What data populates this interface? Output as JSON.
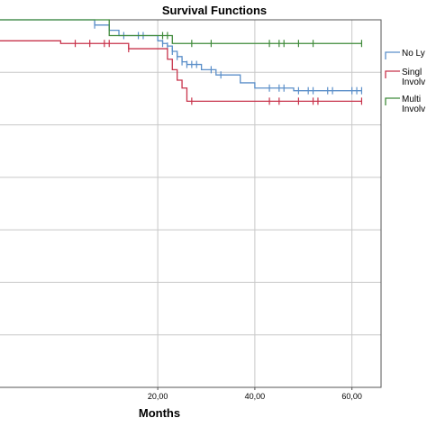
{
  "chart_data": {
    "type": "line",
    "title": "Survival Functions",
    "xlabel": "Months",
    "ylabel": "",
    "xlim": [
      -12.5,
      66
    ],
    "ylim": [
      0.3,
      1.0
    ],
    "x_ticks": [
      20,
      40,
      60
    ],
    "x_tick_labels": [
      "20,00",
      "40,00",
      "60,00"
    ],
    "y_gridlines": [
      1.0,
      0.9,
      0.8,
      0.7,
      0.6,
      0.5,
      0.4
    ],
    "grid": true,
    "legend_position": "right",
    "series": [
      {
        "name": "No Ly...",
        "legend_lines": [
          "No Ly"
        ],
        "color": "#5b8fc9",
        "steps": [
          [
            -12.5,
            1.0
          ],
          [
            7,
            0.99
          ],
          [
            10,
            0.98
          ],
          [
            12,
            0.97
          ],
          [
            20,
            0.96
          ],
          [
            21,
            0.955
          ],
          [
            22,
            0.95
          ],
          [
            23,
            0.94
          ],
          [
            24,
            0.93
          ],
          [
            25,
            0.92
          ],
          [
            26,
            0.915
          ],
          [
            29,
            0.905
          ],
          [
            32,
            0.895
          ],
          [
            37,
            0.88
          ],
          [
            40,
            0.87
          ],
          [
            48,
            0.865
          ],
          [
            62,
            0.865
          ]
        ],
        "censored": [
          7,
          13,
          16,
          17,
          21,
          22,
          23,
          24,
          25,
          26,
          27,
          28,
          31,
          33,
          43,
          45,
          46,
          49,
          51,
          52,
          55,
          56,
          60,
          61,
          62
        ]
      },
      {
        "name": "Singl... Involv...",
        "legend_lines": [
          "Singl",
          "Involv"
        ],
        "color": "#c8334b",
        "steps": [
          [
            -12.5,
            0.96
          ],
          [
            0,
            0.955
          ],
          [
            14,
            0.945
          ],
          [
            22,
            0.925
          ],
          [
            23,
            0.905
          ],
          [
            24,
            0.885
          ],
          [
            25,
            0.87
          ],
          [
            26,
            0.845
          ],
          [
            62,
            0.845
          ]
        ],
        "censored": [
          3,
          6,
          9,
          10,
          14,
          27,
          43,
          45,
          49,
          52,
          53,
          62
        ]
      },
      {
        "name": "Multi... Involv...",
        "legend_lines": [
          "Multi",
          "Involv"
        ],
        "color": "#3f8a3a",
        "steps": [
          [
            -12.5,
            1.0
          ],
          [
            10,
            0.97
          ],
          [
            23,
            0.955
          ],
          [
            62,
            0.955
          ]
        ],
        "censored": [
          21,
          22,
          27,
          31,
          43,
          45,
          46,
          49,
          52,
          62
        ]
      }
    ]
  }
}
